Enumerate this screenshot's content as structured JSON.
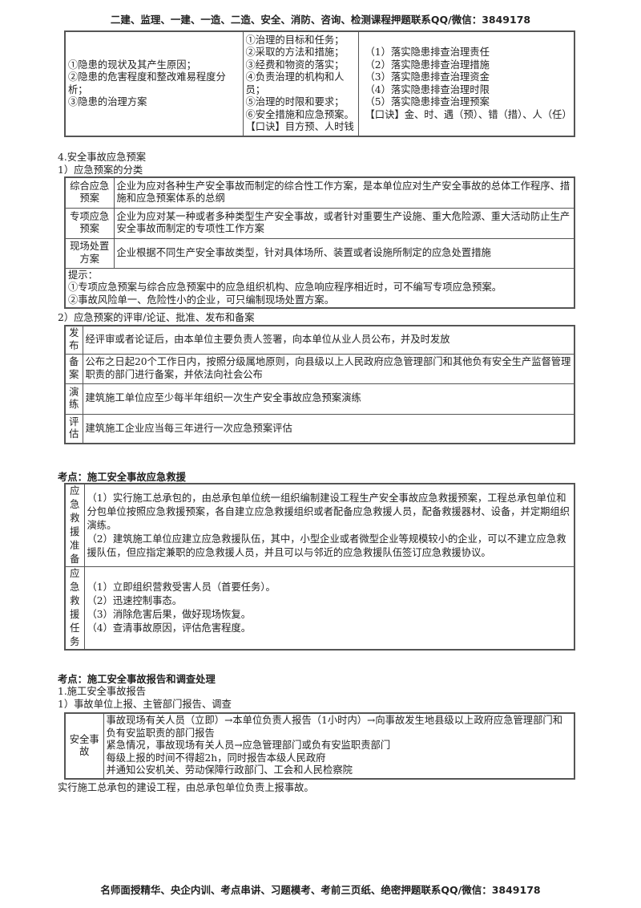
{
  "header": "二建、监理、一建、一造、二造、安全、消防、咨询、检测课程押题联系QQ/微信：3849178",
  "footer": "名师面授精华、央企内训、考点串讲、习题模考、考前三页纸、绝密押题联系QQ/微信：3849178",
  "table1": {
    "col1": [
      "①隐患的现状及其产生原因；",
      "②隐患的危害程度和整改难易程度分析；",
      "③隐患的治理方案"
    ],
    "col2": [
      "①治理的目标和任务；",
      "②采取的方法和措施；",
      "③经费和物资的落实；",
      "④负责治理的机构和人员；",
      "⑤治理的时限和要求；",
      "⑥安全措施和应急预案。",
      "【口诀】目方预、人时钱"
    ],
    "col3": [
      "（1）落实隐患排查治理责任",
      "（2）落实隐患排查治理措施",
      "（3）落实隐患排查治理资金",
      "（4）落实隐患排查治理时限",
      "（5）落实隐患排查治理预案",
      "【口诀】金、时、遇（预）、错（措）、人（任）"
    ]
  },
  "section4": {
    "title": "4.安全事故应急预案",
    "sub1": "1）应急预案的分类",
    "rows": [
      {
        "label": "综合应急预案",
        "text": "企业为应对各种生产安全事故而制定的综合性工作方案，是本单位应对生产安全事故的总体工作程序、措施和应急预案体系的总纲"
      },
      {
        "label": "专项应急预案",
        "text": "企业为应对某一种或者多种类型生产安全事故，或者针对重要生产设施、重大危险源、重大活动防止生产安全事故而制定的专项性工作方案"
      },
      {
        "label": "现场处置方案",
        "text": "企业根据不同生产安全事故类型，针对具体场所、装置或者设施所制定的应急处置措施"
      }
    ],
    "tips": [
      "提示：",
      "①专项应急预案与综合应急预案中的应急组织机构、应急响应程序相近时，可不编写专项应急预案。",
      "②事故风险单一、危险性小的企业，可只编制现场处置方案。"
    ],
    "sub2": "2）应急预案的评审/论证、批准、发布和备案",
    "rows2": [
      {
        "label": "发布",
        "text": "经评审或者论证后，由本单位主要负责人签署，向本单位从业人员公布，并及时发放"
      },
      {
        "label": "备案",
        "text": "公布之日起20个工作日内，按照分级属地原则，向县级以上人民政府应急管理部门和其他负有安全生产监督管理职责的部门进行备案，并依法向社会公布"
      },
      {
        "label": "演练",
        "text": "建筑施工单位应至少每半年组织一次生产安全事故应急预案演练"
      },
      {
        "label": "评估",
        "text": "建筑施工企业应当每三年进行一次应急预案评估"
      }
    ]
  },
  "rescue": {
    "title": "考点：施工安全事故应急救援",
    "rows": [
      {
        "label": "应急救援准备",
        "lines": [
          "（1）实行施工总承包的，由总承包单位统一组织编制建设工程生产安全事故应急救援预案，工程总承包单位和分包单位按照应急救援预案，各自建立应急救援组织或者配备应急救援人员，配备救援器材、设备，并定期组织演练。",
          "（2）建筑施工单位应建立应急救援队伍，其中，小型企业或者微型企业等规模较小的企业，可以不建立应急救援队伍，但应指定兼职的应急救援人员，并且可以与邻近的应急救援队伍签订应急救援协议。"
        ]
      },
      {
        "label": "应急救援任务",
        "lines": [
          "（1）立即组织营救受害人员（首要任务）。",
          "（2）迅速控制事态。",
          "（3）消除危害后果，做好现场恢复。",
          "（4）查清事故原因，评估危害程度。"
        ]
      }
    ]
  },
  "report": {
    "title": "考点：施工安全事故报告和调查处理",
    "sub1": "1.施工安全事故报告",
    "sub2": "1）事故单位上报、主管部门报告、调查",
    "label": "安全事故",
    "lines": [
      "事故现场有关人员（立即）→本单位负责人报告（1小时内）→向事故发生地县级以上政府应急管理部门和负有安监职责的部门报告",
      "紧急情况，事故现场有关人员→应急管理部门或负有安监职责部门",
      "每级上报的时间不得超2h，同时报告本级人民政府",
      "并通知公安机关、劳动保障行政部门、工会和人民检察院"
    ],
    "note": "实行施工总承包的建设工程，由总承包单位负责上报事故。"
  }
}
